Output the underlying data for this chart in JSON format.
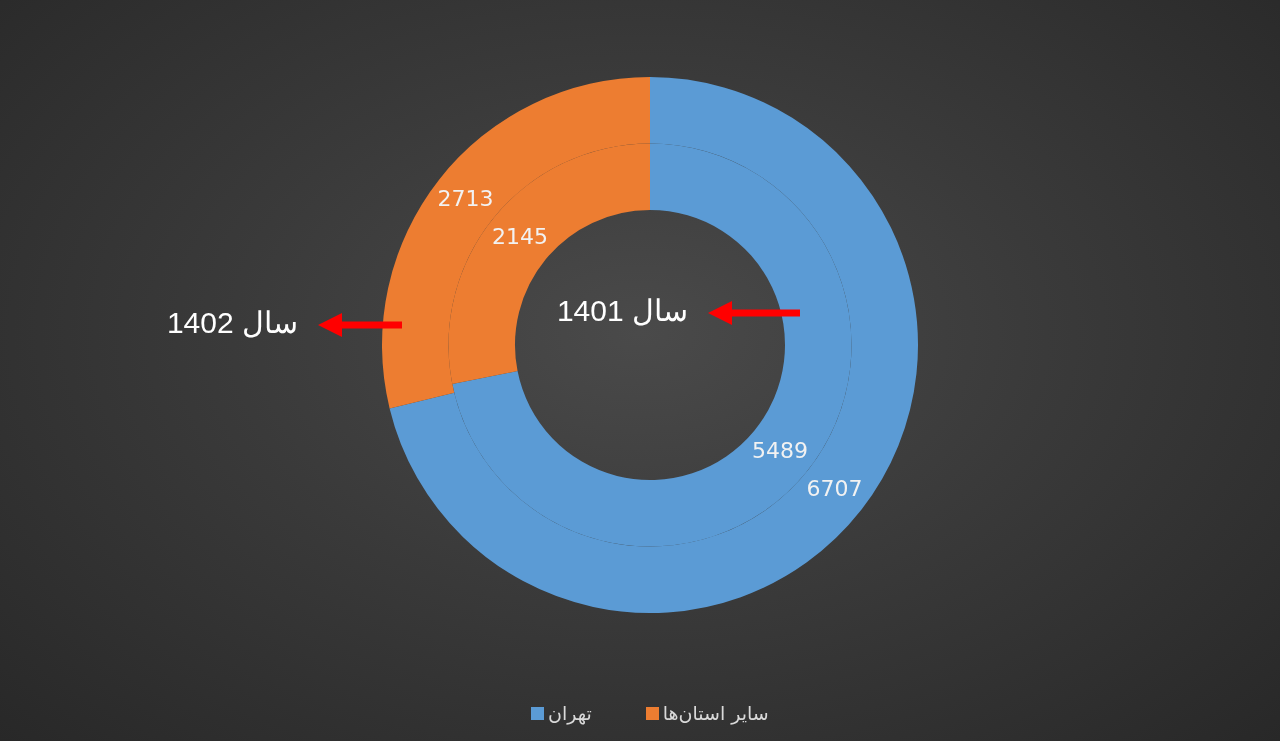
{
  "chart_data": {
    "type": "donut",
    "categories": [
      "تهران",
      "سایر استان‌ها"
    ],
    "colors": [
      "#5b9bd5",
      "#ed7d31"
    ],
    "series": [
      {
        "name": "سال 1402",
        "values": [
          6707,
          2713
        ]
      },
      {
        "name": "سال 1401",
        "values": [
          5489,
          2145
        ]
      }
    ],
    "data_labels": true,
    "legend": "bottom"
  }
}
